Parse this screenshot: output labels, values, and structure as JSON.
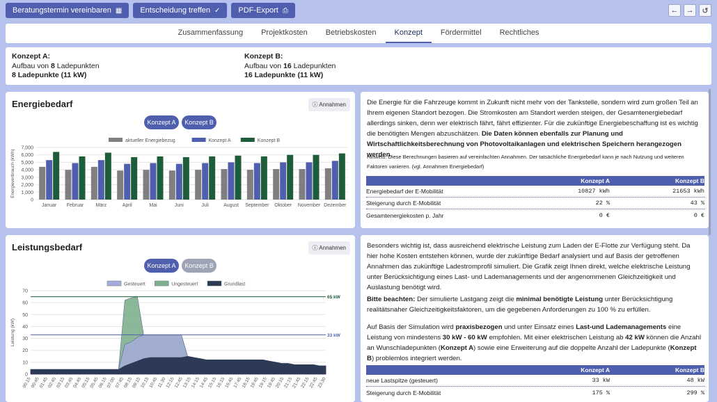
{
  "toolbar": {
    "btn1": "Beratungstermin vereinbaren",
    "btn2": "Entscheidung treffen",
    "btn3": "PDF-Export",
    "nav_back": "←",
    "nav_forward": "→",
    "nav_reset": "↺"
  },
  "tabs": [
    "Zusammenfassung",
    "Projektkosten",
    "Betriebskosten",
    "Konzept",
    "Fördermittel",
    "Rechtliches"
  ],
  "konzept": {
    "a_title": "Konzept A:",
    "a_line1_pre": "Aufbau von ",
    "a_line1_num": "8",
    "a_line1_post": " Ladepunkten",
    "a_line2": "8 Ladepunkte (11 kW)",
    "b_title": "Konzept B:",
    "b_line1_pre": "Aufbau von ",
    "b_line1_num": "16",
    "b_line1_post": " Ladepunkten",
    "b_line2": "16 Ladepunkte (11 kW)"
  },
  "energie": {
    "title": "Energiebedarf",
    "annehmen": "Annahmen",
    "pill_a": "Konzept A",
    "pill_b": "Konzept B",
    "text_p1": "Die Energie für die Fahrzeuge kommt in Zukunft nicht mehr von der Tankstelle, sondern wird zum großen Teil an Ihrem eigenen Standort bezogen. Die Stromkosten am Standort werden steigen, der Gesamtenergiebedarf allerdings sinken, denn wer elektrisch fährt, fährt effizienter. Für die zukünftige Energiebeschaffung ist es wichtig die benötigten Mengen abzuschätzen.",
    "text_p1_bold": "Die Daten können ebenfalls zur Planung und Wirtschaftlichkeitsberechnung von Photovoltaikanlagen und elektrischen Speichern herangezogen werden.",
    "hint": "Hinweis: Diese Berechnungen basieren auf vereinfachten Annahmen. Der tatsächliche Energiebedarf kann je nach Nutzung und weiteren Faktoren variieren. (vgl. Annahmen Energiebedarf)",
    "table": {
      "headers": [
        "",
        "Konzept A",
        "Konzept B"
      ],
      "rows": [
        [
          "Energiebedarf der E-Mobilität",
          "10827 kWh",
          "21653 kWh"
        ],
        [
          "Steigerung durch E-Mobilität",
          "22 %",
          "43 %"
        ],
        [
          "Gesamtenergiekosten p. Jahr",
          "0 €",
          "0 €"
        ]
      ]
    }
  },
  "leistung": {
    "title": "Leistungsbedarf",
    "annehmen": "Annahmen",
    "pill_a": "Konzept A",
    "pill_b": "Konzept B",
    "text_p1": "Besonders wichtig ist, dass ausreichend elektrische Leistung zum Laden der E-Flotte zur Verfügung steht. Da hier hohe Kosten entstehen können, wurde der zukünftige Bedarf analysiert und auf Basis der getroffenen Annahmen das zukünftige Ladestromprofil simuliert. Die Grafik zeigt Ihnen direkt, welche elektrische Leistung unter Berücksichtigung eines Last- und Lademanagements und der angenommenen Gleichzeitigkeit und Auslastung benötigt wird.",
    "text_p2_bold1": "Bitte beachten:",
    "text_p2_mid": " Der simulierte Lastgang zeigt die ",
    "text_p2_bold2": "minimal benötigte Leistung",
    "text_p2_end": " unter Berücksichtigung realitätsnaher Gleichzeitigkeitsfaktoren, um die gegebenen Anforderungen zu 100 % zu erfüllen.",
    "text_p3_a": "Auf Basis der Simulation wird ",
    "text_p3_b": "praxisbezogen",
    "text_p3_c": " und unter Einsatz eines ",
    "text_p3_d": "Last-und Lademanagements",
    "text_p3_e": " eine Leistung von mindestens ",
    "text_p3_f": "30 kW - 60 kW",
    "text_p3_g": " empfohlen. Mit einer elektrischen Leistung ab ",
    "text_p3_h": "42 kW",
    "text_p3_i": " können die Anzahl an Wunschladepunkten (",
    "text_p3_j": "Konzept A",
    "text_p3_k": ") sowie eine Erweiterung auf die doppelte Anzahl der Ladepunkte (",
    "text_p3_l": "Konzept B",
    "text_p3_m": ") problemlos integriert werden.",
    "table": {
      "headers": [
        "",
        "Konzept A",
        "Konzept B"
      ],
      "rows": [
        [
          "neue Lastspitze (gesteuert)",
          "33 kW",
          "48 kW"
        ],
        [
          "Steigerung durch E-Mobilität",
          "175 %",
          "299 %"
        ]
      ]
    }
  },
  "colors": {
    "accent": "#4f5fae",
    "grey": "#7f7f7f",
    "green": "#1e5c3a"
  },
  "chart_data": [
    {
      "type": "bar",
      "title": "",
      "ylabel": "Energieverbrauch (kWh)",
      "ylim": [
        0,
        7000
      ],
      "yticks": [
        "0",
        "1,000",
        "2,000",
        "3,000",
        "4,000",
        "5,000",
        "6,000",
        "7,000"
      ],
      "categories": [
        "Januar",
        "Februar",
        "März",
        "April",
        "Mai",
        "Juni",
        "Juli",
        "August",
        "September",
        "Oktober",
        "November",
        "Dezember"
      ],
      "legend": "top-center",
      "series": [
        {
          "name": "aktueller Energiebezug",
          "color": "#7f7f7f",
          "values": [
            4400,
            4000,
            4400,
            3900,
            4000,
            3900,
            4000,
            4100,
            4000,
            4100,
            4100,
            4200
          ]
        },
        {
          "name": "Konzept A",
          "color": "#4f5fae",
          "values": [
            5300,
            4900,
            5300,
            4800,
            4900,
            4800,
            4900,
            5000,
            4900,
            5000,
            5000,
            5200
          ]
        },
        {
          "name": "Konzept B",
          "color": "#1e5c3a",
          "values": [
            6400,
            5800,
            6300,
            5700,
            5800,
            5700,
            5800,
            5900,
            5800,
            6000,
            6000,
            6200
          ]
        }
      ]
    },
    {
      "type": "area",
      "title": "",
      "ylabel": "Leistung (kW)",
      "ylim": [
        0,
        70
      ],
      "yticks": [
        "0",
        "10",
        "20",
        "30",
        "40",
        "50",
        "60",
        "70"
      ],
      "legend": "top-center",
      "x": [
        "00:15",
        "00:45",
        "01:15",
        "01:45",
        "02:15",
        "02:45",
        "03:15",
        "03:45",
        "04:15",
        "04:45",
        "05:15",
        "05:45",
        "06:15",
        "06:45",
        "07:15",
        "07:45",
        "08:15",
        "08:45",
        "09:15",
        "09:45",
        "10:15",
        "10:45",
        "11:15",
        "11:45",
        "12:15",
        "12:45",
        "13:15",
        "13:45",
        "14:15",
        "14:45",
        "15:15",
        "15:45",
        "16:15",
        "16:45",
        "17:15",
        "17:45",
        "18:15",
        "18:45",
        "19:15",
        "19:45",
        "20:15",
        "20:45",
        "21:15",
        "21:45",
        "22:15",
        "22:45",
        "23:15",
        "23:45"
      ],
      "xlabels": [
        "00:15",
        "00:45",
        "01:45",
        "02:45",
        "03:15",
        "03:45",
        "04:45",
        "05:15",
        "05:45",
        "06:15",
        "07:00",
        "07:45",
        "08:15",
        "09:15",
        "10:15",
        "10:45",
        "11:30",
        "12:15",
        "12:45",
        "13:15",
        "14:15",
        "14:45",
        "15:15",
        "16:15",
        "16:45",
        "17:45",
        "18:15",
        "18:45",
        "19:15",
        "19:45",
        "20:15",
        "21:15",
        "21:45",
        "22:15",
        "22:45",
        "23:30"
      ],
      "series": [
        {
          "name": "Gesteuert",
          "color": "#a4acd9",
          "values": [
            4,
            4,
            4,
            4,
            4,
            4,
            4,
            4,
            4,
            4,
            4,
            4,
            4,
            4,
            4,
            25,
            27,
            31,
            33,
            33,
            33,
            33,
            33,
            33,
            33,
            15,
            14,
            13,
            12,
            12,
            12,
            12,
            12,
            12,
            12,
            12,
            12,
            12,
            11,
            10,
            9,
            9,
            8,
            8,
            8,
            8,
            7,
            7
          ]
        },
        {
          "name": "Ungesteuert",
          "color": "#7fb08f",
          "values": [
            4,
            4,
            4,
            4,
            4,
            4,
            4,
            4,
            4,
            4,
            4,
            4,
            4,
            4,
            4,
            62,
            64,
            65,
            33,
            33,
            33,
            33,
            33,
            33,
            33,
            15,
            14,
            13,
            12,
            12,
            12,
            12,
            12,
            12,
            12,
            12,
            12,
            12,
            11,
            10,
            9,
            9,
            8,
            8,
            8,
            8,
            7,
            7
          ]
        },
        {
          "name": "Grundlast",
          "color": "#2d3a55",
          "values": [
            4,
            4,
            4,
            4,
            4,
            4,
            4,
            4,
            4,
            4,
            4,
            4,
            4,
            4,
            4,
            7,
            9,
            11,
            13,
            14,
            14,
            14,
            14,
            14,
            14,
            15,
            14,
            13,
            12,
            12,
            12,
            12,
            12,
            12,
            12,
            12,
            12,
            12,
            11,
            10,
            9,
            9,
            8,
            8,
            8,
            8,
            7,
            7
          ]
        }
      ],
      "reference_lines": [
        {
          "label": "65 kW",
          "value": 65,
          "color": "#1e5c3a"
        },
        {
          "label": "33 kW",
          "value": 33,
          "color": "#4f5fae"
        }
      ]
    }
  ]
}
